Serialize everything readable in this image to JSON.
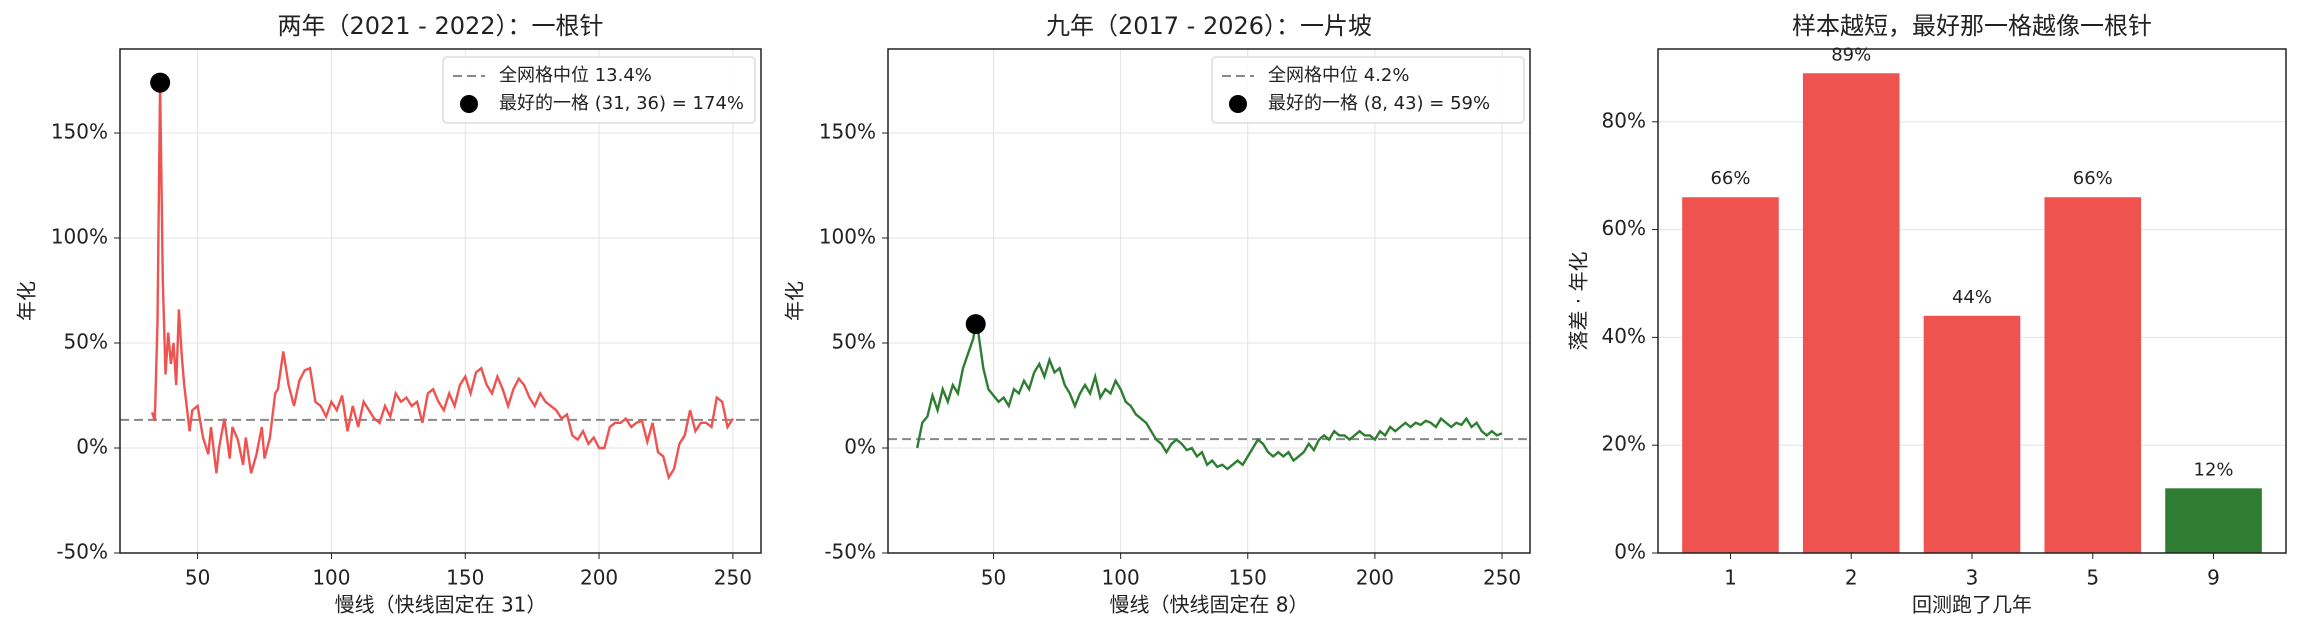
{
  "chart_data": [
    {
      "type": "line",
      "title": "两年（2021 - 2022）：一根针",
      "x_label": "慢线（快线固定在 31）",
      "y_label": "年化",
      "color": "#ef5350",
      "x": [
        33,
        34,
        35,
        36,
        37,
        38,
        39,
        40,
        41,
        42,
        43,
        44,
        45,
        47,
        48,
        50,
        52,
        54,
        55,
        57,
        58,
        60,
        62,
        63,
        65,
        67,
        68,
        70,
        72,
        74,
        75,
        77,
        79,
        80,
        82,
        84,
        86,
        88,
        90,
        92,
        94,
        96,
        98,
        100,
        102,
        104,
        106,
        108,
        110,
        112,
        114,
        116,
        118,
        120,
        122,
        124,
        126,
        128,
        130,
        132,
        134,
        136,
        138,
        140,
        142,
        144,
        146,
        148,
        150,
        152,
        154,
        156,
        158,
        160,
        162,
        164,
        166,
        168,
        170,
        172,
        174,
        176,
        178,
        180,
        182,
        184,
        186,
        188,
        190,
        192,
        194,
        196,
        198,
        200,
        202,
        204,
        206,
        208,
        210,
        212,
        214,
        216,
        218,
        220,
        222,
        224,
        226,
        228,
        230,
        232,
        234,
        236,
        238,
        240,
        242,
        244,
        246,
        248,
        250
      ],
      "values": [
        17,
        13,
        60,
        174,
        80,
        35,
        55,
        40,
        50,
        30,
        66,
        45,
        30,
        8,
        18,
        20,
        5,
        -3,
        10,
        -12,
        0,
        14,
        -5,
        10,
        4,
        -8,
        5,
        -12,
        -3,
        10,
        -5,
        5,
        26,
        28,
        46,
        30,
        20,
        32,
        37,
        38,
        22,
        20,
        15,
        22,
        18,
        25,
        8,
        20,
        10,
        22,
        18,
        14,
        12,
        20,
        15,
        26,
        22,
        24,
        20,
        22,
        12,
        26,
        28,
        22,
        18,
        26,
        20,
        30,
        34,
        26,
        36,
        38,
        30,
        26,
        34,
        28,
        20,
        28,
        33,
        30,
        24,
        20,
        26,
        22,
        20,
        18,
        14,
        16,
        6,
        4,
        8,
        2,
        5,
        0,
        0,
        10,
        12,
        12,
        14,
        10,
        12,
        13,
        3,
        12,
        -2,
        -4,
        -14,
        -10,
        2,
        6,
        18,
        8,
        12,
        12,
        10,
        24,
        22,
        10,
        14
      ],
      "median_line": {
        "value": 13.4,
        "label": "全网格中位 13.4%"
      },
      "best_point": {
        "x": 36,
        "y": 174,
        "label": "最好的一格 (31, 36) = 174%"
      },
      "xlim": [
        21,
        260.5
      ],
      "xticks": [
        50,
        100,
        150,
        200,
        250
      ],
      "ylim": [
        -50,
        190
      ],
      "yticks": [
        {
          "value": -50,
          "label": "-50%"
        },
        {
          "value": 0,
          "label": "0%"
        },
        {
          "value": 50,
          "label": "50%"
        },
        {
          "value": 100,
          "label": "100%"
        },
        {
          "value": 150,
          "label": "150%"
        }
      ],
      "grid": true
    },
    {
      "type": "line",
      "title": "九年（2017 - 2026）：一片坡",
      "x_label": "慢线（快线固定在 8）",
      "y_label": "年化",
      "color": "#2e7d32",
      "x": [
        20,
        22,
        24,
        26,
        28,
        30,
        32,
        34,
        36,
        38,
        40,
        42,
        43,
        44,
        46,
        48,
        50,
        52,
        54,
        56,
        58,
        60,
        62,
        64,
        66,
        68,
        70,
        72,
        74,
        76,
        78,
        80,
        82,
        84,
        86,
        88,
        90,
        92,
        94,
        96,
        98,
        100,
        102,
        104,
        106,
        108,
        110,
        112,
        114,
        116,
        118,
        120,
        122,
        124,
        126,
        128,
        130,
        132,
        134,
        136,
        138,
        140,
        142,
        144,
        146,
        148,
        150,
        152,
        154,
        156,
        158,
        160,
        162,
        164,
        166,
        168,
        170,
        172,
        174,
        176,
        178,
        180,
        182,
        184,
        186,
        188,
        190,
        192,
        194,
        196,
        198,
        200,
        202,
        204,
        206,
        208,
        210,
        212,
        214,
        216,
        218,
        220,
        222,
        224,
        226,
        228,
        230,
        232,
        234,
        236,
        238,
        240,
        242,
        244,
        246,
        248,
        250
      ],
      "values": [
        0,
        12,
        15,
        25,
        18,
        28,
        22,
        30,
        26,
        38,
        45,
        52,
        59,
        55,
        38,
        28,
        25,
        22,
        24,
        20,
        28,
        26,
        32,
        28,
        36,
        40,
        34,
        42,
        36,
        38,
        30,
        26,
        20,
        26,
        30,
        26,
        34,
        24,
        28,
        26,
        32,
        28,
        22,
        20,
        16,
        14,
        12,
        8,
        4,
        2,
        -2,
        2,
        4,
        2,
        -1,
        0,
        -4,
        -2,
        -8,
        -6,
        -9,
        -8,
        -10,
        -8,
        -6,
        -8,
        -4,
        0,
        4,
        2,
        -2,
        -4,
        -2,
        -4,
        -2,
        -6,
        -4,
        -2,
        2,
        -1,
        4,
        6,
        4,
        8,
        6,
        6,
        4,
        6,
        8,
        6,
        6,
        4,
        8,
        6,
        10,
        8,
        10,
        12,
        10,
        12,
        11,
        13,
        12,
        10,
        14,
        12,
        10,
        12,
        11,
        14,
        10,
        12,
        8,
        6,
        8,
        6,
        7
      ],
      "median_line": {
        "value": 4.2,
        "label": "全网格中位 4.2%"
      },
      "best_point": {
        "x": 43,
        "y": 59,
        "label": "最好的一格 (8, 43) = 59%"
      },
      "xlim": [
        8.5,
        261
      ],
      "xticks": [
        50,
        100,
        150,
        200,
        250
      ],
      "ylim": [
        -50,
        190
      ],
      "yticks": [
        {
          "value": -50,
          "label": "-50%"
        },
        {
          "value": 0,
          "label": "0%"
        },
        {
          "value": 50,
          "label": "50%"
        },
        {
          "value": 100,
          "label": "100%"
        },
        {
          "value": 150,
          "label": "150%"
        }
      ],
      "grid": true
    },
    {
      "type": "bar",
      "title": "样本越短，最好那一格越像一根针",
      "x_label": "回测跑了几年",
      "y_label": "落差 · 年化",
      "categories": [
        "1",
        "2",
        "3",
        "5",
        "9"
      ],
      "values": [
        66,
        89,
        44,
        66,
        12
      ],
      "value_labels": [
        "66%",
        "89%",
        "44%",
        "66%",
        "12%"
      ],
      "colors": [
        "#ef5350",
        "#ef5350",
        "#ef5350",
        "#ef5350",
        "#2e7d32"
      ],
      "ylim": [
        0,
        93.5
      ],
      "yticks": [
        {
          "value": 0,
          "label": "0%"
        },
        {
          "value": 20,
          "label": "20%"
        },
        {
          "value": 40,
          "label": "40%"
        },
        {
          "value": 60,
          "label": "60%"
        },
        {
          "value": 80,
          "label": "80%"
        }
      ],
      "grid": true
    }
  ]
}
